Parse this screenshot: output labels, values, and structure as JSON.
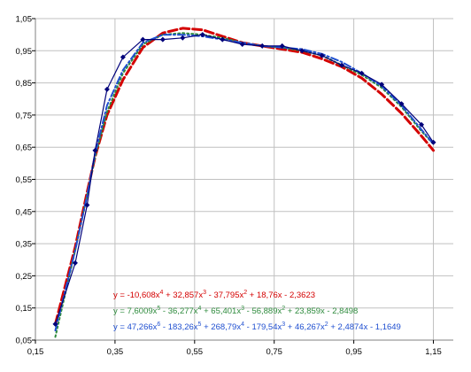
{
  "chart_data": {
    "type": "line",
    "title": "",
    "xlabel": "",
    "ylabel": "",
    "xlim": [
      0.15,
      1.2
    ],
    "ylim": [
      0.05,
      1.05
    ],
    "x_ticks": [
      0.15,
      0.35,
      0.55,
      0.75,
      0.95,
      1.15
    ],
    "x_tick_labels": [
      "0,15",
      "0,35",
      "0,55",
      "0,75",
      "0,95",
      "1,15"
    ],
    "y_ticks": [
      0.05,
      0.15,
      0.25,
      0.35,
      0.45,
      0.55,
      0.65,
      0.75,
      0.85,
      0.95,
      1.05
    ],
    "y_tick_labels": [
      "0,05",
      "0,15",
      "0,25",
      "0,35",
      "0,45",
      "0,55",
      "0,65",
      "0,75",
      "0,85",
      "0,95",
      "1,05"
    ],
    "grid": true,
    "data_series": {
      "color": "#00007a",
      "marker": "diamond",
      "x": [
        0.2,
        0.25,
        0.28,
        0.3,
        0.33,
        0.37,
        0.42,
        0.47,
        0.52,
        0.57,
        0.62,
        0.67,
        0.72,
        0.77,
        0.82,
        0.87,
        0.92,
        0.97,
        1.02,
        1.07,
        1.12,
        1.15
      ],
      "y": [
        0.1,
        0.29,
        0.47,
        0.64,
        0.83,
        0.93,
        0.985,
        0.985,
        0.99,
        1.0,
        0.985,
        0.97,
        0.965,
        0.965,
        0.95,
        0.935,
        0.905,
        0.88,
        0.845,
        0.785,
        0.72,
        0.665
      ]
    },
    "trendlines": [
      {
        "color": "#d40000",
        "dash": "dash",
        "equation_parts": [
          {
            "t": "y = -10,608x"
          },
          {
            "t": "4",
            "sup": true
          },
          {
            "t": " + 32,857x"
          },
          {
            "t": "3",
            "sup": true
          },
          {
            "t": " - 37,795x"
          },
          {
            "t": "2",
            "sup": true
          },
          {
            "t": " + 18,76x - 2,3623"
          }
        ]
      },
      {
        "color": "#2e8b3d",
        "dash": "dot",
        "equation_parts": [
          {
            "t": "y = 7,6009x"
          },
          {
            "t": "5",
            "sup": true
          },
          {
            "t": " - 36,277x"
          },
          {
            "t": "4",
            "sup": true
          },
          {
            "t": " + 65,401x"
          },
          {
            "t": "3",
            "sup": true
          },
          {
            "t": " - 56,889x"
          },
          {
            "t": "2",
            "sup": true
          },
          {
            "t": " + 23,859x - 2,8498"
          }
        ]
      },
      {
        "color": "#1f4fd0",
        "dash": "dashdot",
        "equation_parts": [
          {
            "t": "y = 47,266x"
          },
          {
            "t": "6",
            "sup": true
          },
          {
            "t": " - 183,26x"
          },
          {
            "t": "5",
            "sup": true
          },
          {
            "t": " + 268,79x"
          },
          {
            "t": "4",
            "sup": true
          },
          {
            "t": " - 179,54x"
          },
          {
            "t": "3",
            "sup": true
          },
          {
            "t": " + 46,267x"
          },
          {
            "t": "2",
            "sup": true
          },
          {
            "t": " + 2,4874x - 1,1649"
          }
        ]
      }
    ],
    "trendline_curves": [
      {
        "x": [
          0.2,
          0.25,
          0.28,
          0.3,
          0.33,
          0.37,
          0.42,
          0.47,
          0.52,
          0.57,
          0.62,
          0.67,
          0.72,
          0.77,
          0.82,
          0.87,
          0.92,
          0.97,
          1.02,
          1.07,
          1.12,
          1.15
        ],
        "y": [
          0.1,
          0.34,
          0.51,
          0.62,
          0.75,
          0.86,
          0.96,
          1.005,
          1.02,
          1.015,
          0.995,
          0.975,
          0.965,
          0.955,
          0.945,
          0.925,
          0.9,
          0.865,
          0.815,
          0.755,
          0.685,
          0.64
        ]
      },
      {
        "x": [
          0.2,
          0.25,
          0.28,
          0.3,
          0.33,
          0.37,
          0.42,
          0.47,
          0.52,
          0.57,
          0.62,
          0.67,
          0.72,
          0.77,
          0.82,
          0.87,
          0.92,
          0.97,
          1.02,
          1.07,
          1.12,
          1.15
        ],
        "y": [
          0.06,
          0.33,
          0.5,
          0.62,
          0.76,
          0.88,
          0.97,
          1.0,
          1.005,
          1.0,
          0.99,
          0.975,
          0.965,
          0.96,
          0.95,
          0.935,
          0.905,
          0.875,
          0.835,
          0.775,
          0.7,
          0.66
        ]
      },
      {
        "x": [
          0.2,
          0.25,
          0.28,
          0.3,
          0.33,
          0.37,
          0.42,
          0.47,
          0.52,
          0.57,
          0.62,
          0.67,
          0.72,
          0.77,
          0.82,
          0.87,
          0.92,
          0.97,
          1.02,
          1.07,
          1.12,
          1.15
        ],
        "y": [
          0.08,
          0.33,
          0.5,
          0.63,
          0.78,
          0.89,
          0.975,
          1.0,
          1.0,
          0.995,
          0.985,
          0.975,
          0.965,
          0.96,
          0.955,
          0.94,
          0.915,
          0.88,
          0.84,
          0.78,
          0.705,
          0.66
        ]
      }
    ]
  }
}
